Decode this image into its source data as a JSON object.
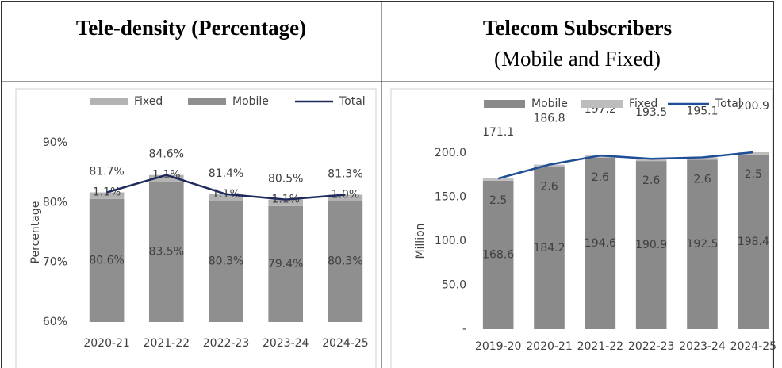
{
  "chart_data": [
    {
      "type": "bar",
      "title": "Tele-density (Percentage)",
      "categories": [
        "2020-21",
        "2021-22",
        "2022-23",
        "2023-24",
        "2024-25"
      ],
      "series": [
        {
          "name": "Fixed",
          "color": "#b3b3b3",
          "stack": true,
          "values": [
            1.1,
            1.1,
            1.1,
            1.1,
            1.0
          ],
          "value_labels": [
            "1.1%",
            "1.1%",
            "1.1%",
            "1.1%",
            "1.0%"
          ]
        },
        {
          "name": "Mobile",
          "color": "#8f8f8f",
          "stack": true,
          "values": [
            80.6,
            83.5,
            80.3,
            79.4,
            80.3
          ],
          "value_labels": [
            "80.6%",
            "83.5%",
            "80.3%",
            "79.4%",
            "80.3%"
          ]
        },
        {
          "name": "Total",
          "color": "#1f2a5c",
          "line": true,
          "values": [
            81.7,
            84.6,
            81.4,
            80.5,
            81.3
          ],
          "value_labels": [
            "81.7%",
            "84.6%",
            "81.4%",
            "80.5%",
            "81.3%"
          ]
        }
      ],
      "stack_order": [
        "Mobile",
        "Fixed"
      ],
      "y_label": "Percentage",
      "ylim": [
        60,
        90
      ],
      "yticks": [
        {
          "value": 60,
          "label": "60%"
        },
        {
          "value": 70,
          "label": "70%"
        },
        {
          "value": 80,
          "label": "80%"
        },
        {
          "value": 90,
          "label": "90%"
        }
      ],
      "grid": false
    },
    {
      "type": "bar",
      "title": "Telecom Subscribers",
      "subtitle": "(Mobile and Fixed)",
      "categories": [
        "2019-20",
        "2020-21",
        "2021-22",
        "2022-23",
        "2023-24",
        "2024-25"
      ],
      "series": [
        {
          "name": "Mobile",
          "color": "#8a8a8a",
          "stack": true,
          "values": [
            168.6,
            184.2,
            194.6,
            190.9,
            192.5,
            198.4
          ]
        },
        {
          "name": "Fixed",
          "color": "#bdbdbd",
          "stack": true,
          "values": [
            2.5,
            2.6,
            2.6,
            2.6,
            2.6,
            2.5
          ]
        },
        {
          "name": "Total",
          "color": "#1f4e96",
          "line": true,
          "values": [
            171.1,
            186.8,
            197.2,
            193.5,
            195.1,
            200.9
          ]
        }
      ],
      "stack_order": [
        "Mobile",
        "Fixed"
      ],
      "y_label": "Million",
      "ylim": [
        0,
        200
      ],
      "yticks": [
        {
          "value": 0,
          "label": "-"
        },
        {
          "value": 50,
          "label": "50.0"
        },
        {
          "value": 100,
          "label": "100.0"
        },
        {
          "value": 150,
          "label": "150.0"
        },
        {
          "value": 200,
          "label": "200.0"
        }
      ],
      "grid": false
    }
  ]
}
